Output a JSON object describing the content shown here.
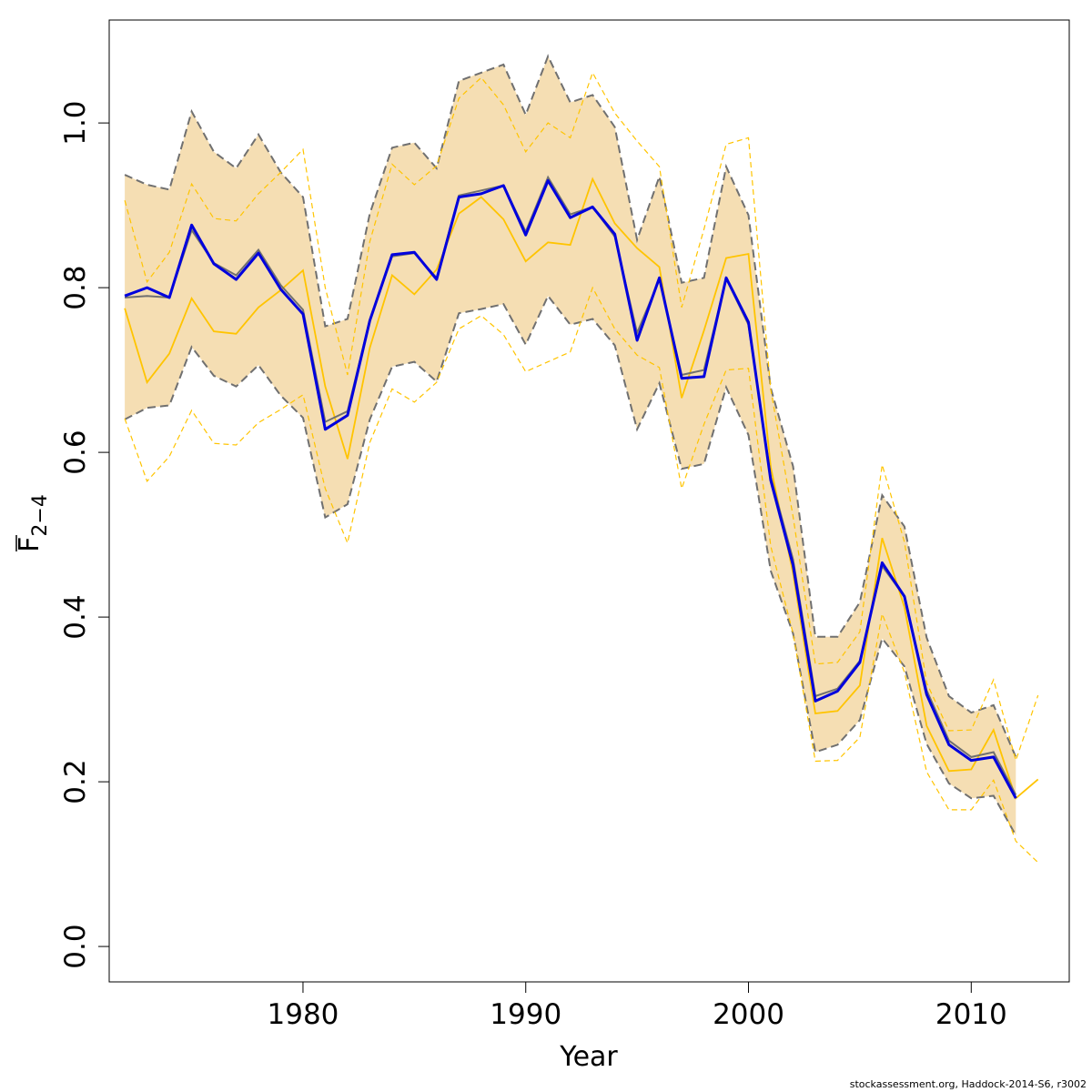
{
  "chart_data": {
    "type": "line",
    "xlabel": "Year",
    "ylabel": "F",
    "ylabel_sub": "2−4",
    "xlim": [
      1971.3,
      2014.4
    ],
    "ylim": [
      -0.043,
      1.125
    ],
    "x_ticks": [
      1980,
      1990,
      2000,
      2010
    ],
    "y_ticks": [
      0.0,
      0.2,
      0.4,
      0.6,
      0.8,
      1.0
    ],
    "y_tick_labels": [
      "0.0",
      "0.2",
      "0.4",
      "0.6",
      "0.8",
      "1.0"
    ],
    "colors": {
      "band_fill": "#f5deb3",
      "band_border": "#707070",
      "estimate": "#0000dd",
      "estimate_shadow": "#707070",
      "alt_estimate": "#ffc400"
    },
    "years": [
      1972,
      1973,
      1974,
      1975,
      1976,
      1977,
      1978,
      1979,
      1980,
      1981,
      1982,
      1983,
      1984,
      1985,
      1986,
      1987,
      1988,
      1989,
      1990,
      1991,
      1992,
      1993,
      1994,
      1995,
      1996,
      1997,
      1998,
      1999,
      2000,
      2001,
      2002,
      2003,
      2004,
      2005,
      2006,
      2007,
      2008,
      2009,
      2010,
      2011,
      2012
    ],
    "series": [
      {
        "role": "estimate",
        "values": [
          0.79,
          0.8,
          0.788,
          0.876,
          0.829,
          0.81,
          0.842,
          0.798,
          0.768,
          0.628,
          0.645,
          0.76,
          0.84,
          0.843,
          0.81,
          0.91,
          0.914,
          0.924,
          0.864,
          0.93,
          0.885,
          0.898,
          0.865,
          0.736,
          0.812,
          0.69,
          0.692,
          0.812,
          0.758,
          0.566,
          0.463,
          0.298,
          0.31,
          0.345,
          0.466,
          0.425,
          0.306,
          0.245,
          0.226,
          0.23,
          0.18
        ]
      },
      {
        "role": "estimate_shadow",
        "values": [
          0.788,
          0.79,
          0.788,
          0.87,
          0.83,
          0.815,
          0.846,
          0.803,
          0.773,
          0.637,
          0.65,
          0.761,
          0.838,
          0.842,
          0.812,
          0.912,
          0.918,
          0.924,
          0.868,
          0.934,
          0.889,
          0.898,
          0.862,
          0.745,
          0.81,
          0.694,
          0.7,
          0.811,
          0.755,
          0.57,
          0.47,
          0.304,
          0.313,
          0.347,
          0.462,
          0.425,
          0.311,
          0.25,
          0.23,
          0.236,
          0.184
        ]
      },
      {
        "role": "upper",
        "values": [
          0.937,
          0.925,
          0.919,
          1.014,
          0.965,
          0.945,
          0.986,
          0.94,
          0.91,
          0.753,
          0.762,
          0.89,
          0.97,
          0.976,
          0.945,
          1.051,
          1.061,
          1.071,
          1.01,
          1.081,
          1.025,
          1.034,
          0.995,
          0.858,
          0.935,
          0.806,
          0.812,
          0.947,
          0.888,
          0.678,
          0.583,
          0.376,
          0.376,
          0.418,
          0.548,
          0.51,
          0.375,
          0.304,
          0.284,
          0.293,
          0.23
        ]
      },
      {
        "role": "lower",
        "values": [
          0.64,
          0.654,
          0.657,
          0.728,
          0.693,
          0.68,
          0.706,
          0.669,
          0.642,
          0.521,
          0.537,
          0.64,
          0.704,
          0.71,
          0.686,
          0.769,
          0.774,
          0.78,
          0.731,
          0.79,
          0.755,
          0.762,
          0.73,
          0.628,
          0.684,
          0.58,
          0.586,
          0.679,
          0.621,
          0.456,
          0.38,
          0.236,
          0.245,
          0.275,
          0.374,
          0.34,
          0.246,
          0.198,
          0.18,
          0.183,
          0.135
        ]
      }
    ],
    "alt_years": [
      1972,
      1973,
      1974,
      1975,
      1976,
      1977,
      1978,
      1979,
      1980,
      1981,
      1982,
      1983,
      1984,
      1985,
      1986,
      1987,
      1988,
      1989,
      1990,
      1991,
      1992,
      1993,
      1994,
      1995,
      1996,
      1997,
      1998,
      1999,
      2000,
      2001,
      2002,
      2003,
      2004,
      2005,
      2006,
      2007,
      2008,
      2009,
      2010,
      2011,
      2012,
      2013
    ],
    "alt_series": [
      {
        "role": "alt_estimate",
        "values": [
          0.775,
          0.685,
          0.72,
          0.787,
          0.747,
          0.744,
          0.776,
          0.797,
          0.821,
          0.68,
          0.592,
          0.727,
          0.815,
          0.792,
          0.822,
          0.89,
          0.91,
          0.883,
          0.832,
          0.855,
          0.852,
          0.932,
          0.878,
          0.848,
          0.825,
          0.666,
          0.748,
          0.836,
          0.841,
          0.582,
          0.453,
          0.283,
          0.286,
          0.317,
          0.496,
          0.412,
          0.268,
          0.213,
          0.215,
          0.263,
          0.18,
          0.203
        ]
      },
      {
        "role": "alt_upper",
        "values": [
          0.906,
          0.807,
          0.843,
          0.926,
          0.884,
          0.881,
          0.914,
          0.94,
          0.968,
          0.8,
          0.694,
          0.856,
          0.95,
          0.925,
          0.948,
          1.03,
          1.055,
          1.022,
          0.965,
          1.0,
          0.982,
          1.061,
          1.012,
          0.978,
          0.947,
          0.776,
          0.871,
          0.974,
          0.982,
          0.676,
          0.522,
          0.343,
          0.345,
          0.382,
          0.585,
          0.491,
          0.32,
          0.262,
          0.263,
          0.324,
          0.226,
          0.305
        ]
      },
      {
        "role": "alt_lower",
        "values": [
          0.641,
          0.565,
          0.595,
          0.651,
          0.611,
          0.609,
          0.636,
          0.652,
          0.67,
          0.556,
          0.49,
          0.612,
          0.677,
          0.661,
          0.685,
          0.75,
          0.766,
          0.743,
          0.698,
          0.71,
          0.722,
          0.8,
          0.75,
          0.718,
          0.703,
          0.556,
          0.634,
          0.7,
          0.702,
          0.486,
          0.38,
          0.225,
          0.226,
          0.254,
          0.404,
          0.333,
          0.212,
          0.166,
          0.166,
          0.202,
          0.128,
          0.102
        ]
      }
    ]
  },
  "footer": {
    "text": "stockassessment.org, Haddock-2014-S6, r3002"
  }
}
